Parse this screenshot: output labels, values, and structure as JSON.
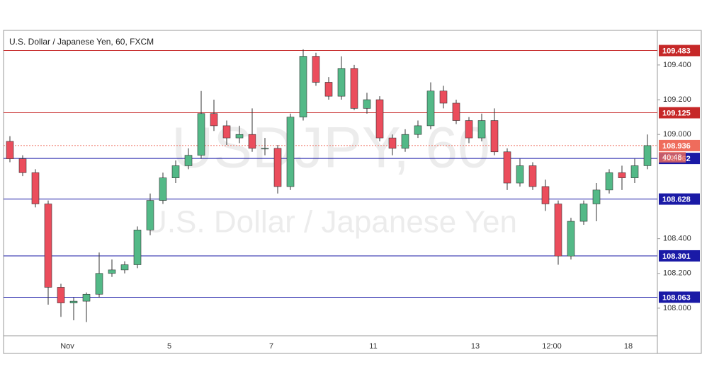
{
  "chart_data": {
    "type": "candlestick",
    "title": "U.S. Dollar / Japanese Yen, 60, FXCM",
    "watermark": "USDJPY, 60",
    "watermark_subtitle": "U.S. Dollar / Japanese Yen",
    "categories": [
      null,
      null,
      null,
      null,
      null,
      "Nov",
      null,
      null,
      null,
      null,
      null,
      null,
      null,
      "5",
      null,
      null,
      null,
      null,
      null,
      null,
      null,
      "7",
      null,
      null,
      null,
      null,
      null,
      null,
      null,
      "11",
      null,
      null,
      null,
      null,
      null,
      null,
      null,
      "13",
      null,
      null,
      null,
      null,
      null,
      "12:00",
      null,
      null,
      null,
      null,
      null,
      "18",
      null
    ],
    "open": [
      108.96,
      108.86,
      108.78,
      108.6,
      108.12,
      108.03,
      108.04,
      108.08,
      108.2,
      108.22,
      108.25,
      108.45,
      108.62,
      108.75,
      108.82,
      108.88,
      109.12,
      109.05,
      108.98,
      109.0,
      108.92,
      108.92,
      108.7,
      109.1,
      109.45,
      109.3,
      109.22,
      109.38,
      109.15,
      109.2,
      108.98,
      108.92,
      109.0,
      109.05,
      109.25,
      109.18,
      109.08,
      108.98,
      109.08,
      108.9,
      108.72,
      108.82,
      108.7,
      108.6,
      108.3,
      108.5,
      108.6,
      108.68,
      108.78,
      108.75,
      108.82
    ],
    "high": [
      108.99,
      108.88,
      108.8,
      108.62,
      108.14,
      108.06,
      108.09,
      108.32,
      108.28,
      108.27,
      108.47,
      108.66,
      108.78,
      108.85,
      108.92,
      109.25,
      109.2,
      109.08,
      109.05,
      109.15,
      108.98,
      108.94,
      109.12,
      109.49,
      109.47,
      109.33,
      109.45,
      109.4,
      109.24,
      109.22,
      109.0,
      109.03,
      109.08,
      109.3,
      109.28,
      109.2,
      109.1,
      109.12,
      109.15,
      108.92,
      108.86,
      108.84,
      108.74,
      108.62,
      108.52,
      108.62,
      108.72,
      108.8,
      108.82,
      108.86,
      109.0
    ],
    "low": [
      108.84,
      108.76,
      108.58,
      108.02,
      107.95,
      107.93,
      107.92,
      108.06,
      108.18,
      108.2,
      108.23,
      108.42,
      108.6,
      108.72,
      108.8,
      108.86,
      109.02,
      108.94,
      108.95,
      108.9,
      108.88,
      108.66,
      108.68,
      109.08,
      109.28,
      109.2,
      109.2,
      109.14,
      109.12,
      108.96,
      108.88,
      108.9,
      108.98,
      109.03,
      109.15,
      109.06,
      108.95,
      108.96,
      108.88,
      108.68,
      108.7,
      108.68,
      108.56,
      108.25,
      108.28,
      108.48,
      108.5,
      108.66,
      108.68,
      108.72,
      108.8
    ],
    "close": [
      108.86,
      108.78,
      108.6,
      108.12,
      108.03,
      108.04,
      108.08,
      108.2,
      108.22,
      108.25,
      108.45,
      108.62,
      108.75,
      108.82,
      108.88,
      109.12,
      109.05,
      108.98,
      109.0,
      108.92,
      108.92,
      108.7,
      109.1,
      109.45,
      109.3,
      109.22,
      109.38,
      109.15,
      109.2,
      108.98,
      108.92,
      109.0,
      109.05,
      109.25,
      109.18,
      109.08,
      108.98,
      109.08,
      108.9,
      108.72,
      108.82,
      108.7,
      108.6,
      108.3,
      108.5,
      108.6,
      108.68,
      108.78,
      108.75,
      108.82,
      108.936
    ],
    "up_color": "#53b987",
    "down_color": "#eb4d5c",
    "ylim": [
      107.841,
      109.599
    ],
    "yticks": [
      {
        "value": 108.0,
        "label": "108.000"
      },
      {
        "value": 108.2,
        "label": "108.200"
      },
      {
        "value": 108.4,
        "label": "108.400"
      },
      {
        "value": 109.0,
        "label": "109.000"
      },
      {
        "value": 109.2,
        "label": "109.200"
      },
      {
        "value": 109.4,
        "label": "109.400"
      }
    ],
    "levels": [
      {
        "value": 109.483,
        "color": "#c62828"
      },
      {
        "value": 109.125,
        "color": "#c62828"
      },
      {
        "value": 108.862,
        "color": "#1a1aa6"
      },
      {
        "value": 108.628,
        "color": "#1a1aa6"
      },
      {
        "value": 108.301,
        "color": "#1a1aa6"
      },
      {
        "value": 108.063,
        "color": "#1a1aa6"
      }
    ],
    "last_price": 108.936,
    "last_color": "#ef6c5c",
    "countdown": "40:48"
  }
}
